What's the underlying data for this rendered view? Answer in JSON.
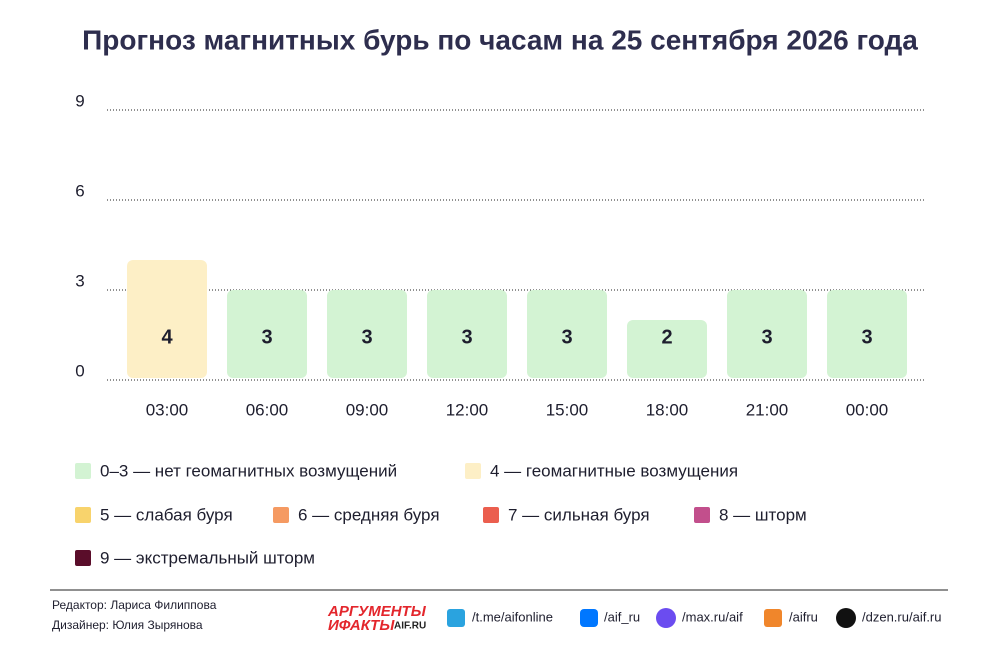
{
  "chart_data": {
    "type": "bar",
    "title": "Прогноз магнитных бурь по часам на 25 сентября 2026 года",
    "categories": [
      "03:00",
      "06:00",
      "09:00",
      "12:00",
      "15:00",
      "18:00",
      "21:00",
      "00:00"
    ],
    "values": [
      4,
      3,
      3,
      3,
      3,
      2,
      3,
      3
    ],
    "colors": [
      "#fdefc6",
      "#d3f3d3",
      "#d3f3d3",
      "#d3f3d3",
      "#d3f3d3",
      "#d3f3d3",
      "#d3f3d3",
      "#d3f3d3"
    ],
    "ylim": [
      0,
      9
    ],
    "yticks": [
      0,
      3,
      6,
      9
    ],
    "grid": true,
    "legend": [
      {
        "label": "0–3 — нет геомагнитных возмущений",
        "color": "#d3f3d3"
      },
      {
        "label": "4 — геомагнитные возмущения",
        "color": "#fdefc6"
      },
      {
        "label": "5 — слабая буря",
        "color": "#f8d36c"
      },
      {
        "label": "6 — средняя буря",
        "color": "#f59a62"
      },
      {
        "label": "7 — сильная буря",
        "color": "#eb5e4e"
      },
      {
        "label": "8 — шторм",
        "color": "#c24f8c"
      },
      {
        "label": "9 — экстремальный шторм",
        "color": "#5a0d2a"
      }
    ]
  },
  "footer": {
    "editor": "Редактор: Лариса Филиппова",
    "designer": "Дизайнер: Юлия Зырянова",
    "logo": [
      "АРГУМЕНТЫ",
      "ИФАКТЫ",
      "AIF.RU"
    ],
    "social": [
      "/t.me/aifonline",
      "/aif_ru",
      "/max.ru/aif",
      "/aifru",
      "/dzen.ru/aif.ru"
    ]
  }
}
